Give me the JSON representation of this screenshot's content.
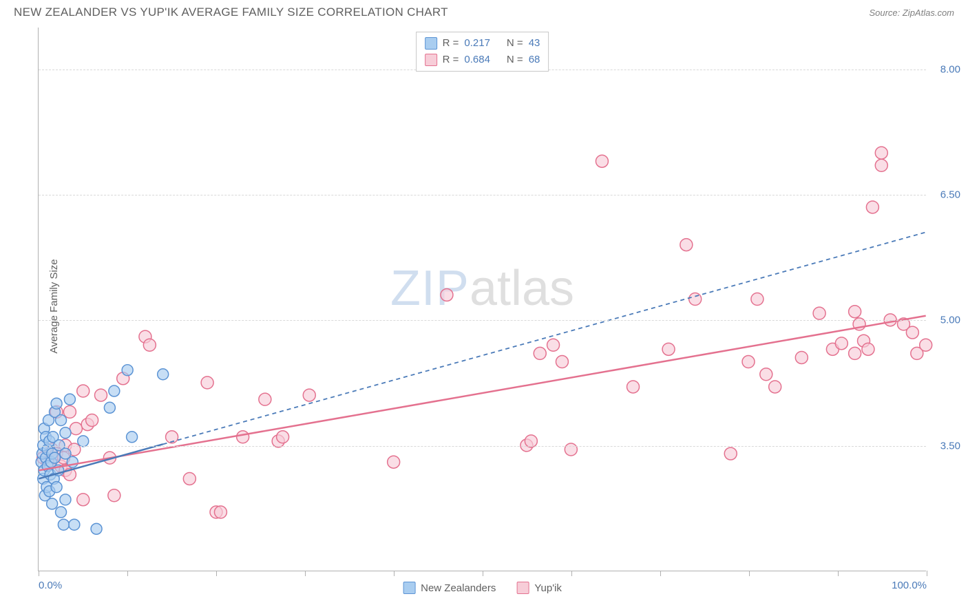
{
  "header": {
    "title": "NEW ZEALANDER VS YUP'IK AVERAGE FAMILY SIZE CORRELATION CHART",
    "source": "Source: ZipAtlas.com"
  },
  "chart": {
    "type": "scatter",
    "y_axis_label": "Average Family Size",
    "xlim": [
      0,
      100
    ],
    "ylim": [
      2.0,
      8.5
    ],
    "x_ticks": [
      0,
      10,
      20,
      30,
      40,
      50,
      60,
      70,
      80,
      90,
      100
    ],
    "x_tick_labels": {
      "0": "0.0%",
      "100": "100.0%"
    },
    "y_ticks": [
      3.5,
      5.0,
      6.5,
      8.0
    ],
    "y_tick_labels": [
      "3.50",
      "5.00",
      "6.50",
      "8.00"
    ],
    "grid_color": "#d8d8d8",
    "axis_color": "#b0b0b0",
    "background_color": "#ffffff",
    "watermark": {
      "part1": "ZIP",
      "part2": "atlas"
    },
    "series": {
      "blue": {
        "label": "New Zealanders",
        "R": "0.217",
        "N": "43",
        "marker_fill": "#a9cdf0",
        "marker_stroke": "#5b93d4",
        "marker_radius": 8,
        "trend_color": "#4a7ab8",
        "trend_dash": "6,5",
        "trend_solid_until_x": 14,
        "trend": {
          "x1": 0,
          "y1": 3.1,
          "x2": 100,
          "y2": 6.05
        },
        "points": [
          [
            0.3,
            3.3
          ],
          [
            0.4,
            3.4
          ],
          [
            0.5,
            3.1
          ],
          [
            0.5,
            3.5
          ],
          [
            0.6,
            3.2
          ],
          [
            0.6,
            3.7
          ],
          [
            0.7,
            2.9
          ],
          [
            0.8,
            3.35
          ],
          [
            0.8,
            3.6
          ],
          [
            0.9,
            3.0
          ],
          [
            1.0,
            3.25
          ],
          [
            1.0,
            3.45
          ],
          [
            1.1,
            3.8
          ],
          [
            1.2,
            2.95
          ],
          [
            1.2,
            3.55
          ],
          [
            1.3,
            3.15
          ],
          [
            1.4,
            3.3
          ],
          [
            1.5,
            3.4
          ],
          [
            1.5,
            2.8
          ],
          [
            1.6,
            3.6
          ],
          [
            1.7,
            3.1
          ],
          [
            1.8,
            3.9
          ],
          [
            1.8,
            3.35
          ],
          [
            2.0,
            3.0
          ],
          [
            2.0,
            4.0
          ],
          [
            2.2,
            3.2
          ],
          [
            2.3,
            3.5
          ],
          [
            2.5,
            2.7
          ],
          [
            2.5,
            3.8
          ],
          [
            2.8,
            2.55
          ],
          [
            3.0,
            3.4
          ],
          [
            3.0,
            3.65
          ],
          [
            3.5,
            4.05
          ],
          [
            3.8,
            3.3
          ],
          [
            3.0,
            2.85
          ],
          [
            4.0,
            2.55
          ],
          [
            5.0,
            3.55
          ],
          [
            6.5,
            2.5
          ],
          [
            8.0,
            3.95
          ],
          [
            8.5,
            4.15
          ],
          [
            10.0,
            4.4
          ],
          [
            10.5,
            3.6
          ],
          [
            14.0,
            4.35
          ]
        ]
      },
      "pink": {
        "label": "Yup'ik",
        "R": "0.684",
        "N": "68",
        "marker_fill": "#f7cdd8",
        "marker_stroke": "#e4718f",
        "marker_radius": 9,
        "trend_color": "#e4718f",
        "trend_dash": "",
        "trend": {
          "x1": 0,
          "y1": 3.2,
          "x2": 100,
          "y2": 5.05
        },
        "points": [
          [
            0.5,
            3.35
          ],
          [
            1.0,
            3.3
          ],
          [
            1.5,
            3.45
          ],
          [
            2.0,
            3.4
          ],
          [
            2.0,
            3.9
          ],
          [
            2.5,
            3.25
          ],
          [
            2.8,
            3.35
          ],
          [
            3.0,
            3.5
          ],
          [
            3.0,
            3.2
          ],
          [
            3.5,
            3.9
          ],
          [
            3.5,
            3.15
          ],
          [
            4.0,
            3.45
          ],
          [
            4.2,
            3.7
          ],
          [
            5.0,
            2.85
          ],
          [
            5.0,
            4.15
          ],
          [
            5.5,
            3.75
          ],
          [
            6.0,
            3.8
          ],
          [
            7.0,
            4.1
          ],
          [
            8.0,
            3.35
          ],
          [
            8.5,
            2.9
          ],
          [
            9.5,
            4.3
          ],
          [
            12.0,
            4.8
          ],
          [
            12.5,
            4.7
          ],
          [
            15.0,
            3.6
          ],
          [
            17.0,
            3.1
          ],
          [
            19.0,
            4.25
          ],
          [
            20.0,
            2.7
          ],
          [
            20.5,
            2.7
          ],
          [
            23.0,
            3.6
          ],
          [
            25.5,
            4.05
          ],
          [
            27.0,
            3.55
          ],
          [
            27.5,
            3.6
          ],
          [
            30.5,
            4.1
          ],
          [
            40.0,
            3.3
          ],
          [
            46.0,
            5.3
          ],
          [
            55.0,
            3.5
          ],
          [
            55.5,
            3.55
          ],
          [
            56.5,
            4.6
          ],
          [
            58.0,
            4.7
          ],
          [
            59.0,
            4.5
          ],
          [
            60.0,
            3.45
          ],
          [
            63.5,
            6.9
          ],
          [
            67.0,
            4.2
          ],
          [
            71.0,
            4.65
          ],
          [
            73.0,
            5.9
          ],
          [
            74.0,
            5.25
          ],
          [
            78.0,
            3.4
          ],
          [
            80.0,
            4.5
          ],
          [
            81.0,
            5.25
          ],
          [
            82.0,
            4.35
          ],
          [
            83.0,
            4.2
          ],
          [
            86.0,
            4.55
          ],
          [
            88.0,
            5.08
          ],
          [
            89.5,
            4.65
          ],
          [
            90.5,
            4.72
          ],
          [
            92.0,
            4.6
          ],
          [
            92.0,
            5.1
          ],
          [
            92.5,
            4.95
          ],
          [
            93.0,
            4.75
          ],
          [
            93.5,
            4.65
          ],
          [
            94.0,
            6.35
          ],
          [
            95.0,
            7.0
          ],
          [
            95.0,
            6.85
          ],
          [
            96.0,
            5.0
          ],
          [
            97.5,
            4.95
          ],
          [
            98.5,
            4.85
          ],
          [
            99.0,
            4.6
          ],
          [
            100.0,
            4.7
          ]
        ]
      }
    },
    "top_legend": {
      "rows": [
        {
          "swatch": "blue",
          "r_label": "R =",
          "r_val": "0.217",
          "n_label": "N =",
          "n_val": "43"
        },
        {
          "swatch": "pink",
          "r_label": "R =",
          "r_val": "0.684",
          "n_label": "N =",
          "n_val": "68"
        }
      ]
    }
  }
}
